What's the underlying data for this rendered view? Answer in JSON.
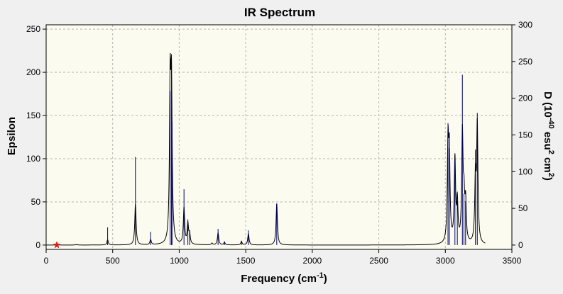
{
  "chart_data": {
    "type": "line",
    "title": "IR Spectrum",
    "xlabel": "Frequency (cm",
    "xlabel_sup": "-1",
    "xlabel_close": ")",
    "ylabel": "Epsilon",
    "y2label_parts": [
      "D (10",
      "-40",
      " esu",
      "2",
      " cm",
      "2",
      ")"
    ],
    "xlim": [
      0,
      3500
    ],
    "ylim": [
      -5,
      255
    ],
    "y2lim": [
      -5.88,
      300
    ],
    "xticks": [
      0,
      500,
      1000,
      1500,
      2000,
      2500,
      3000,
      3500
    ],
    "yticks": [
      0,
      50,
      100,
      150,
      200,
      250
    ],
    "y2ticks": [
      0,
      50,
      100,
      150,
      200,
      250,
      300
    ],
    "grid": true,
    "colors": {
      "spectrum": "#000000",
      "sticks": "#00006e",
      "marker": "#e01b1b",
      "plot_background": "#fbfbf0",
      "grid": "#b4b4b4"
    },
    "series": [
      {
        "kind": "curve",
        "peaks": [
          {
            "x": 84,
            "y": 0.8
          },
          {
            "x": 228,
            "y": 0.6
          },
          {
            "x": 462,
            "y": 6
          },
          {
            "x": 671,
            "y": 47
          },
          {
            "x": 785,
            "y": 6
          },
          {
            "x": 932,
            "y": 175
          },
          {
            "x": 942,
            "y": 168
          },
          {
            "x": 1036,
            "y": 42
          },
          {
            "x": 1065,
            "y": 23
          },
          {
            "x": 1078,
            "y": 11
          },
          {
            "x": 1246,
            "y": 2
          },
          {
            "x": 1292,
            "y": 14
          },
          {
            "x": 1340,
            "y": 3
          },
          {
            "x": 1468,
            "y": 4
          },
          {
            "x": 1520,
            "y": 13
          },
          {
            "x": 1733,
            "y": 48
          },
          {
            "x": 3020,
            "y": 110
          },
          {
            "x": 3030,
            "y": 96
          },
          {
            "x": 3072,
            "y": 96
          },
          {
            "x": 3090,
            "y": 45
          },
          {
            "x": 3128,
            "y": 125
          },
          {
            "x": 3140,
            "y": 45
          },
          {
            "x": 3152,
            "y": 44
          },
          {
            "x": 3226,
            "y": 72
          },
          {
            "x": 3240,
            "y": 135
          }
        ]
      },
      {
        "kind": "sticks",
        "points": [
          {
            "x": 84,
            "y": 1
          },
          {
            "x": 228,
            "y": 1
          },
          {
            "x": 462,
            "y": 24
          },
          {
            "x": 671,
            "y": 120
          },
          {
            "x": 785,
            "y": 18
          },
          {
            "x": 932,
            "y": 210
          },
          {
            "x": 942,
            "y": 260
          },
          {
            "x": 946,
            "y": 168
          },
          {
            "x": 1036,
            "y": 76
          },
          {
            "x": 1065,
            "y": 35
          },
          {
            "x": 1078,
            "y": 20
          },
          {
            "x": 1292,
            "y": 22
          },
          {
            "x": 1340,
            "y": 5
          },
          {
            "x": 1468,
            "y": 6
          },
          {
            "x": 1520,
            "y": 20
          },
          {
            "x": 1733,
            "y": 56
          },
          {
            "x": 3020,
            "y": 166
          },
          {
            "x": 3030,
            "y": 132
          },
          {
            "x": 3072,
            "y": 116
          },
          {
            "x": 3090,
            "y": 60
          },
          {
            "x": 3128,
            "y": 232
          },
          {
            "x": 3140,
            "y": 70
          },
          {
            "x": 3152,
            "y": 60
          },
          {
            "x": 3226,
            "y": 130
          },
          {
            "x": 3240,
            "y": 180
          }
        ]
      }
    ],
    "marker": {
      "x": 80,
      "y": 0,
      "symbol": "star"
    }
  }
}
